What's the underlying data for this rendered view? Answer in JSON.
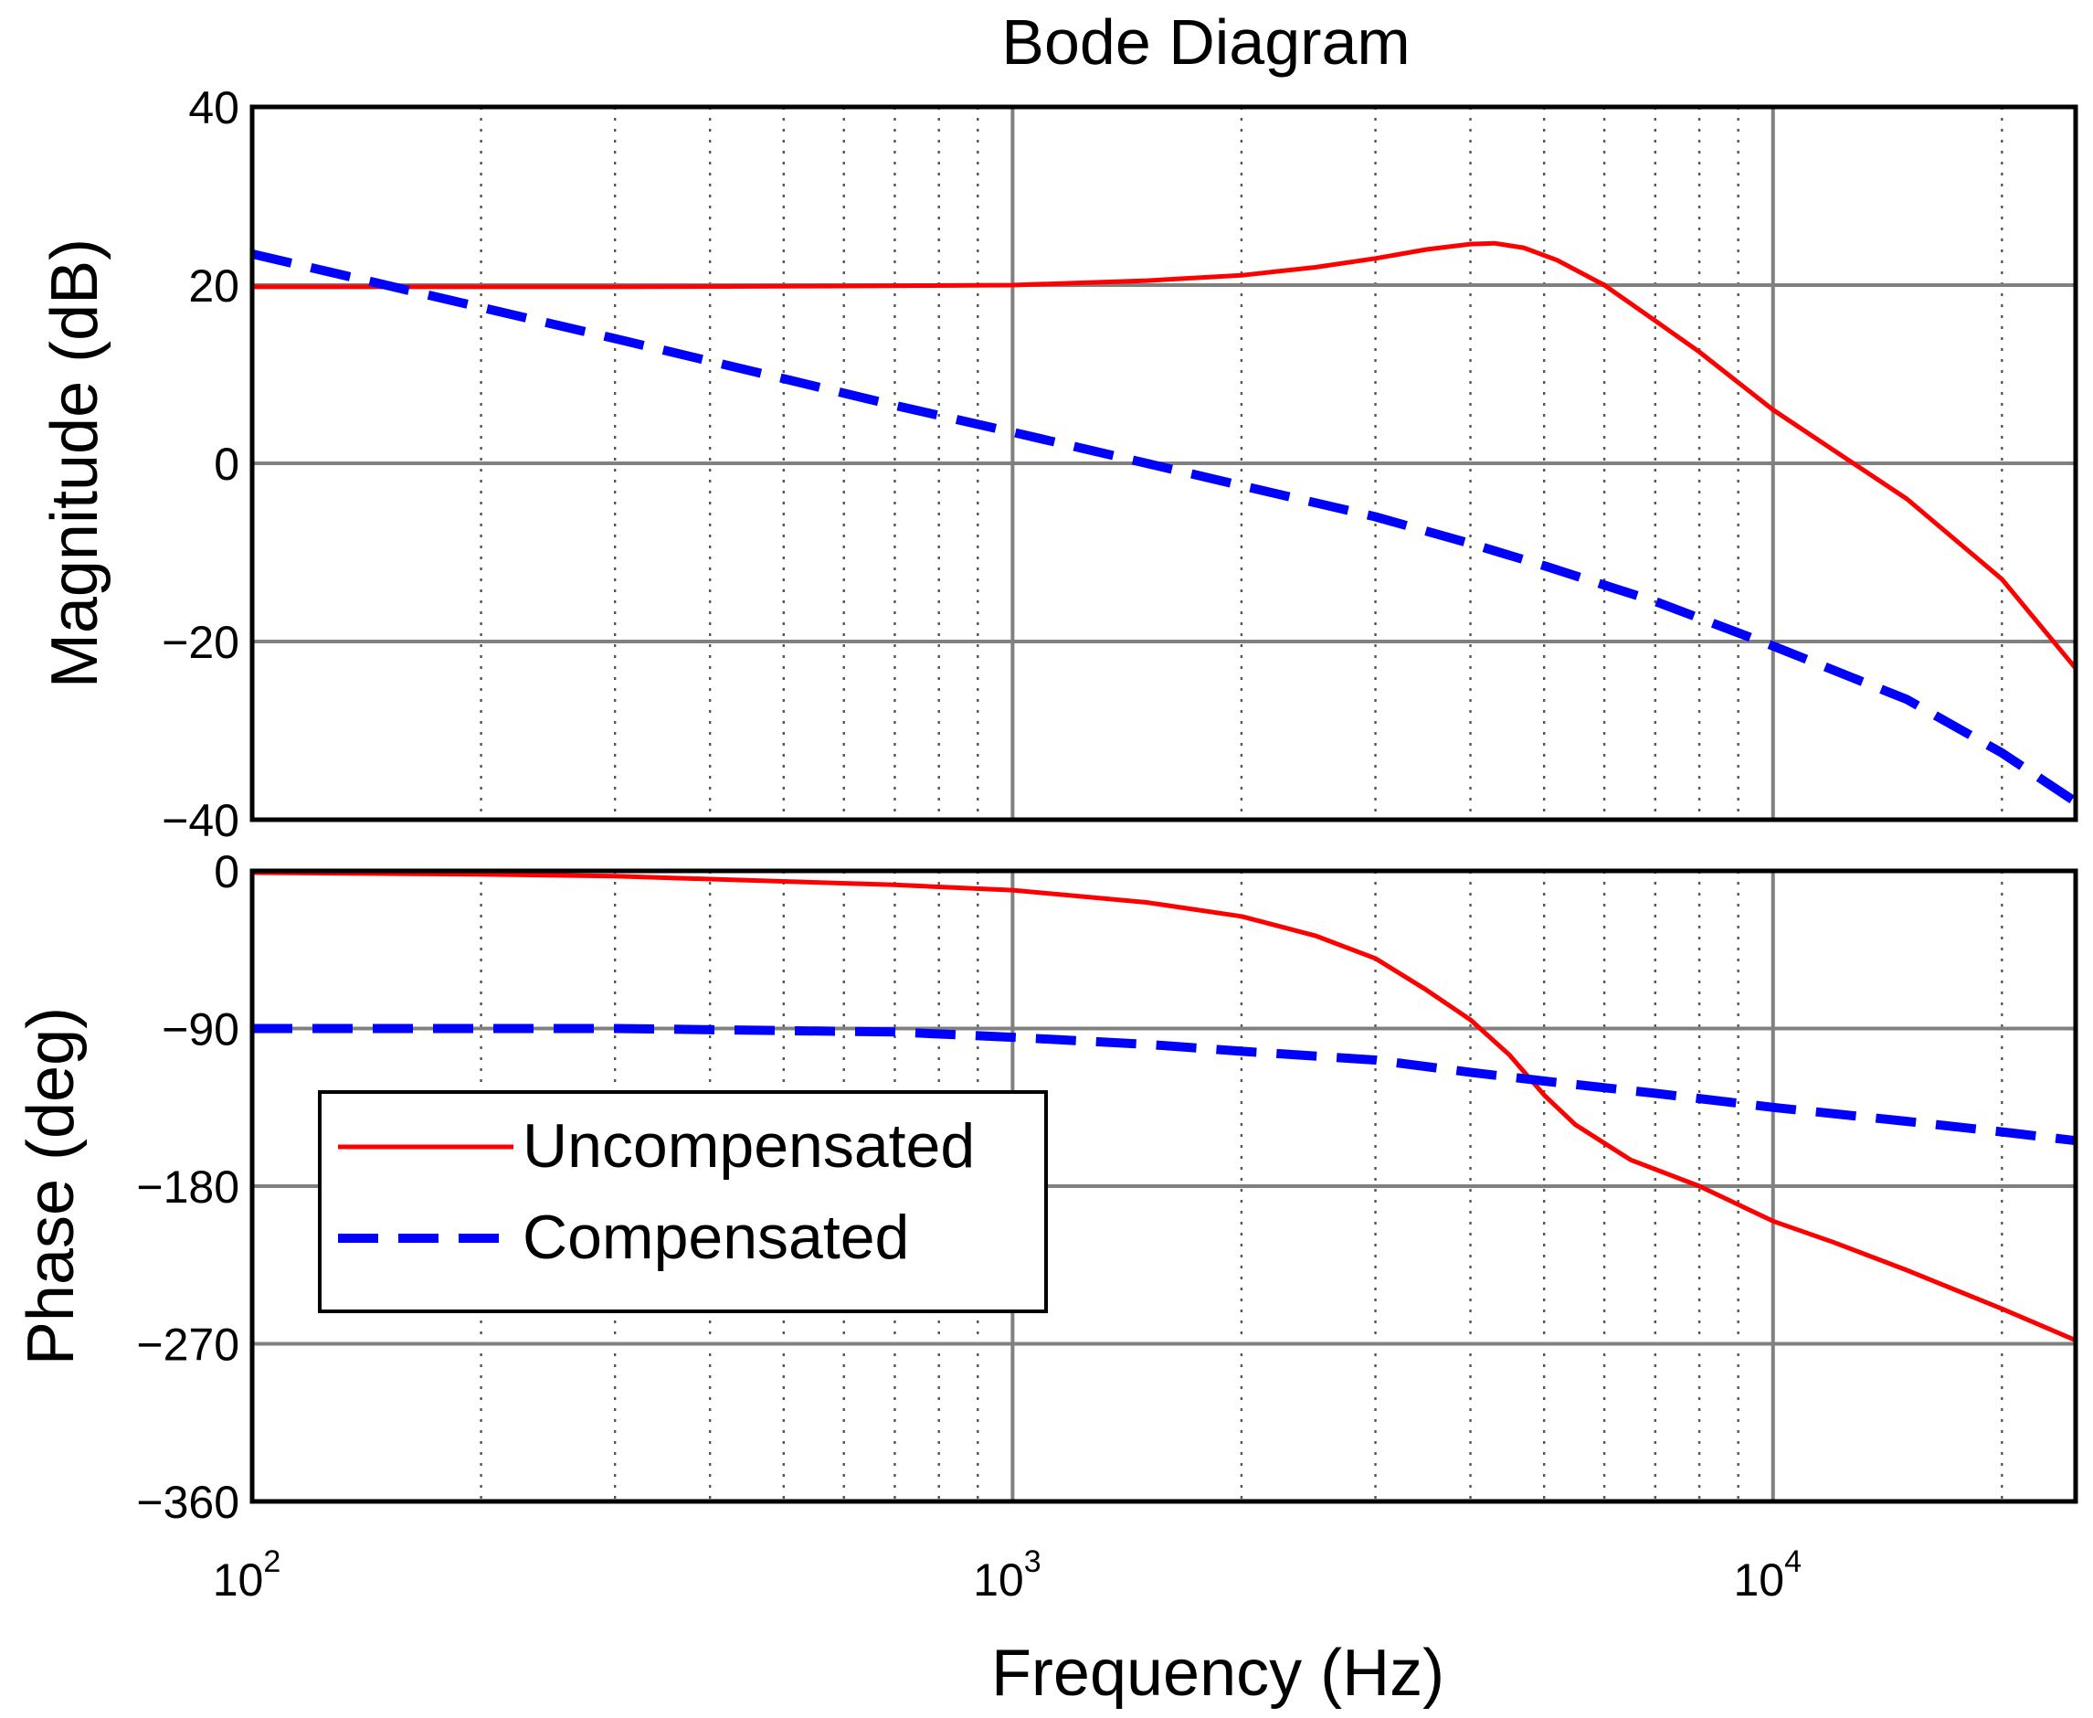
{
  "chart_data": {
    "type": "line",
    "title": "Bode Diagram",
    "xlabel": "Frequency  (Hz)",
    "xscale": "log",
    "xlim": [
      100,
      25000
    ],
    "x_tick_labels": [
      {
        "base": "10",
        "exp": "2",
        "value": 100
      },
      {
        "base": "10",
        "exp": "3",
        "value": 1000
      },
      {
        "base": "10",
        "exp": "4",
        "value": 10000
      }
    ],
    "grid": true,
    "legend": {
      "location": "center-left of phase panel",
      "entries": [
        {
          "label": "Uncompensated",
          "color": "#ff0000",
          "style": "solid"
        },
        {
          "label": "Compensated",
          "color": "#0000ff",
          "style": "dashed"
        }
      ]
    },
    "panels": [
      {
        "id": "magnitude",
        "ylabel": "Magnitude (dB)",
        "ylim": [
          -40,
          40
        ],
        "y_ticks": [
          40,
          20,
          0,
          -20,
          -40
        ],
        "y_tick_labels": [
          "40",
          "20",
          "0",
          "−20",
          "−40"
        ],
        "series": [
          {
            "name": "Uncompensated",
            "points": [
              [
                100,
                19.8
              ],
              [
                300,
                19.8
              ],
              [
                600,
                19.9
              ],
              [
                1000,
                20.0
              ],
              [
                1500,
                20.5
              ],
              [
                2000,
                21.1
              ],
              [
                2500,
                22.0
              ],
              [
                3000,
                23.0
              ],
              [
                3500,
                24.0
              ],
              [
                4000,
                24.6
              ],
              [
                4300,
                24.7
              ],
              [
                4700,
                24.2
              ],
              [
                5200,
                22.8
              ],
              [
                6000,
                20.0
              ],
              [
                7000,
                16.0
              ],
              [
                8000,
                12.5
              ],
              [
                10000,
                6.0
              ],
              [
                12000,
                1.5
              ],
              [
                15000,
                -4.0
              ],
              [
                20000,
                -13.0
              ],
              [
                25000,
                -23.0
              ]
            ]
          },
          {
            "name": "Compensated",
            "points": [
              [
                100,
                23.5
              ],
              [
                150,
                20.0
              ],
              [
                200,
                17.5
              ],
              [
                300,
                14.0
              ],
              [
                500,
                9.5
              ],
              [
                700,
                6.5
              ],
              [
                1000,
                3.5
              ],
              [
                1500,
                0.0
              ],
              [
                2000,
                -2.5
              ],
              [
                3000,
                -6.0
              ],
              [
                4000,
                -9.0
              ],
              [
                5000,
                -11.5
              ],
              [
                7000,
                -15.5
              ],
              [
                10000,
                -20.5
              ],
              [
                15000,
                -26.5
              ],
              [
                20000,
                -32.5
              ],
              [
                25000,
                -38.0
              ]
            ]
          }
        ]
      },
      {
        "id": "phase",
        "ylabel": "Phase (deg)",
        "ylim": [
          -360,
          0
        ],
        "y_ticks": [
          0,
          -90,
          -180,
          -270,
          -360
        ],
        "y_tick_labels": [
          "0",
          "−90",
          "−180",
          "−270",
          "−360"
        ],
        "series": [
          {
            "name": "Uncompensated",
            "points": [
              [
                100,
                -1
              ],
              [
                200,
                -2
              ],
              [
                300,
                -3
              ],
              [
                500,
                -6
              ],
              [
                700,
                -8
              ],
              [
                1000,
                -11
              ],
              [
                1500,
                -18
              ],
              [
                2000,
                -26
              ],
              [
                2500,
                -37
              ],
              [
                3000,
                -50
              ],
              [
                3500,
                -68
              ],
              [
                4000,
                -85
              ],
              [
                4500,
                -105
              ],
              [
                5000,
                -128
              ],
              [
                5500,
                -145
              ],
              [
                6500,
                -165
              ],
              [
                8000,
                -180
              ],
              [
                10000,
                -200
              ],
              [
                12000,
                -212
              ],
              [
                15000,
                -228
              ],
              [
                20000,
                -250
              ],
              [
                25000,
                -268
              ]
            ]
          },
          {
            "name": "Compensated",
            "points": [
              [
                100,
                -90
              ],
              [
                300,
                -90
              ],
              [
                700,
                -92
              ],
              [
                1000,
                -95
              ],
              [
                1500,
                -99
              ],
              [
                2000,
                -103
              ],
              [
                3000,
                -108
              ],
              [
                4000,
                -115
              ],
              [
                5000,
                -120
              ],
              [
                7000,
                -127
              ],
              [
                10000,
                -135
              ],
              [
                15000,
                -143
              ],
              [
                20000,
                -149
              ],
              [
                25000,
                -154
              ]
            ]
          }
        ]
      }
    ]
  }
}
